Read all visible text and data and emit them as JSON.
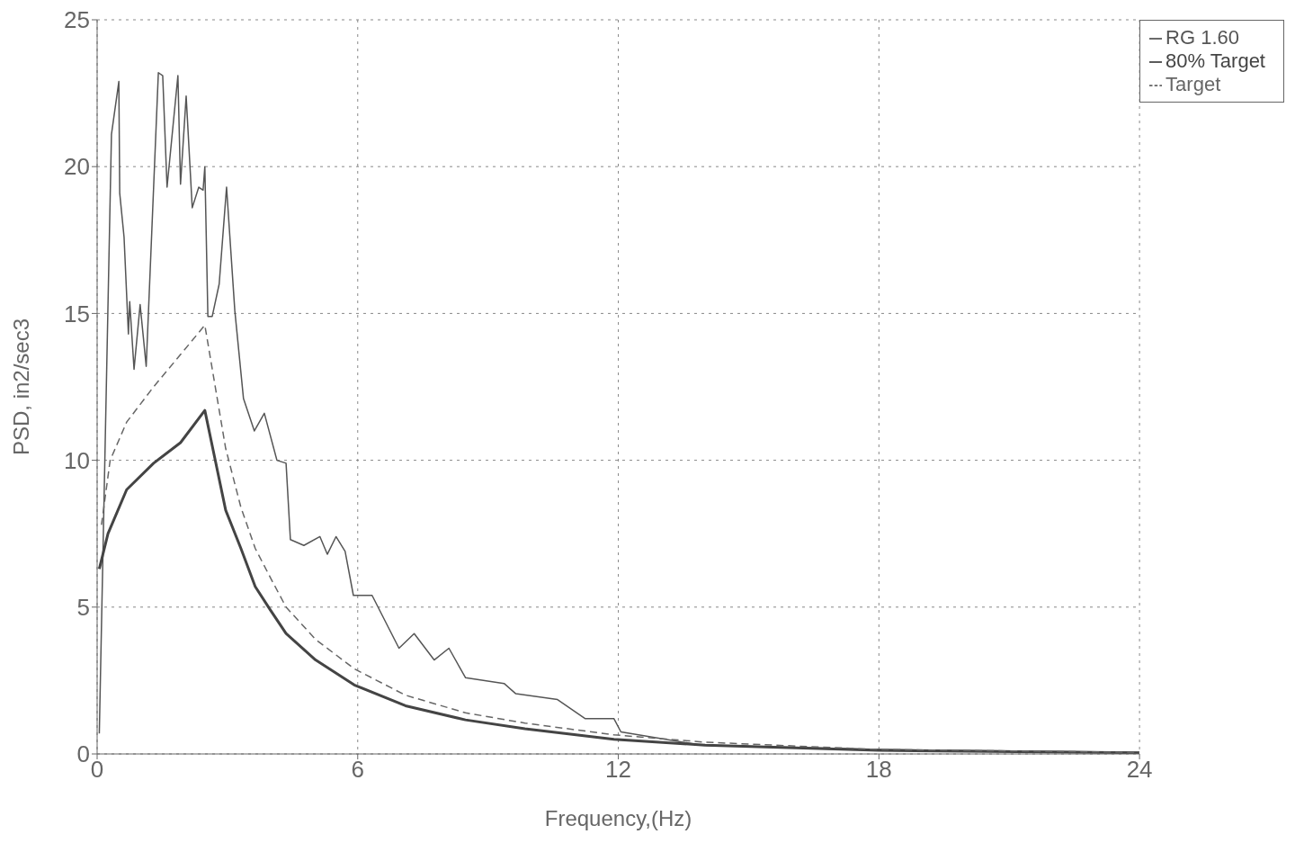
{
  "chart_data": {
    "type": "line",
    "xlabel": "Frequency,(Hz)",
    "ylabel": "PSD, in2/sec3",
    "xlim": [
      0,
      24
    ],
    "xticks": [
      0,
      6,
      12,
      18,
      24
    ],
    "ylim": [
      0,
      25
    ],
    "yticks": [
      0,
      5,
      10,
      15,
      20,
      25
    ],
    "grid": true,
    "legend": "top right",
    "marker": "none",
    "series": [
      {
        "name": "RG 1.60",
        "color": "#555555",
        "line_style": "solid",
        "x": [
          0.05,
          0.33,
          0.5,
          0.52,
          0.62,
          0.72,
          0.75,
          0.85,
          0.99,
          1.13,
          1.41,
          1.51,
          1.61,
          1.86,
          1.92,
          2.05,
          2.19,
          2.34,
          2.44,
          2.48,
          2.55,
          2.65,
          2.81,
          2.98,
          3.17,
          3.37,
          3.62,
          3.85,
          4.14,
          4.35,
          4.45,
          4.76,
          5.13,
          5.3,
          5.5,
          5.71,
          5.9,
          6.33,
          6.95,
          7.3,
          7.76,
          8.1,
          8.48,
          9.37,
          9.64,
          10.6,
          11.24,
          11.9,
          12.06,
          13.9,
          18,
          24
        ],
        "values": [
          0.7,
          21.1,
          22.9,
          19.1,
          17.6,
          14.3,
          15.4,
          13.1,
          15.3,
          13.2,
          23.2,
          23.1,
          19.3,
          23.1,
          19.4,
          22.4,
          18.6,
          19.3,
          19.2,
          20.0,
          14.9,
          14.9,
          16.0,
          19.3,
          15.1,
          12.1,
          11.0,
          11.6,
          10.0,
          9.9,
          7.3,
          7.1,
          7.4,
          6.8,
          7.4,
          6.9,
          5.4,
          5.4,
          3.6,
          4.1,
          3.2,
          3.6,
          2.6,
          2.4,
          2.05,
          1.85,
          1.2,
          1.2,
          0.75,
          0.3,
          0.15,
          0.05
        ]
      },
      {
        "name": "80% Target",
        "color": "#444444",
        "line_style": "solid",
        "x": [
          0.05,
          0.25,
          0.68,
          1.3,
          1.92,
          2.48,
          2.96,
          3.31,
          3.64,
          3.99,
          4.35,
          5.03,
          5.92,
          7.1,
          8.48,
          9.85,
          11.9,
          14,
          18,
          24
        ],
        "values": [
          6.3,
          7.5,
          9.0,
          9.9,
          10.6,
          11.7,
          8.3,
          7.0,
          5.7,
          4.9,
          4.1,
          3.2,
          2.35,
          1.64,
          1.16,
          0.86,
          0.5,
          0.3,
          0.12,
          0.04
        ]
      },
      {
        "name": "Target",
        "color": "#666666",
        "line_style": "dashed",
        "x": [
          0.1,
          0.3,
          0.68,
          1.3,
          1.92,
          2.48,
          2.96,
          3.31,
          3.64,
          3.99,
          4.35,
          5.03,
          5.92,
          7.1,
          8.48,
          9.85,
          11.9,
          14,
          18,
          24
        ],
        "values": [
          7.8,
          10.0,
          11.3,
          12.5,
          13.6,
          14.6,
          10.4,
          8.4,
          7.0,
          6.0,
          5.0,
          3.9,
          2.9,
          2.0,
          1.4,
          1.05,
          0.65,
          0.4,
          0.15,
          0.05
        ]
      }
    ]
  }
}
